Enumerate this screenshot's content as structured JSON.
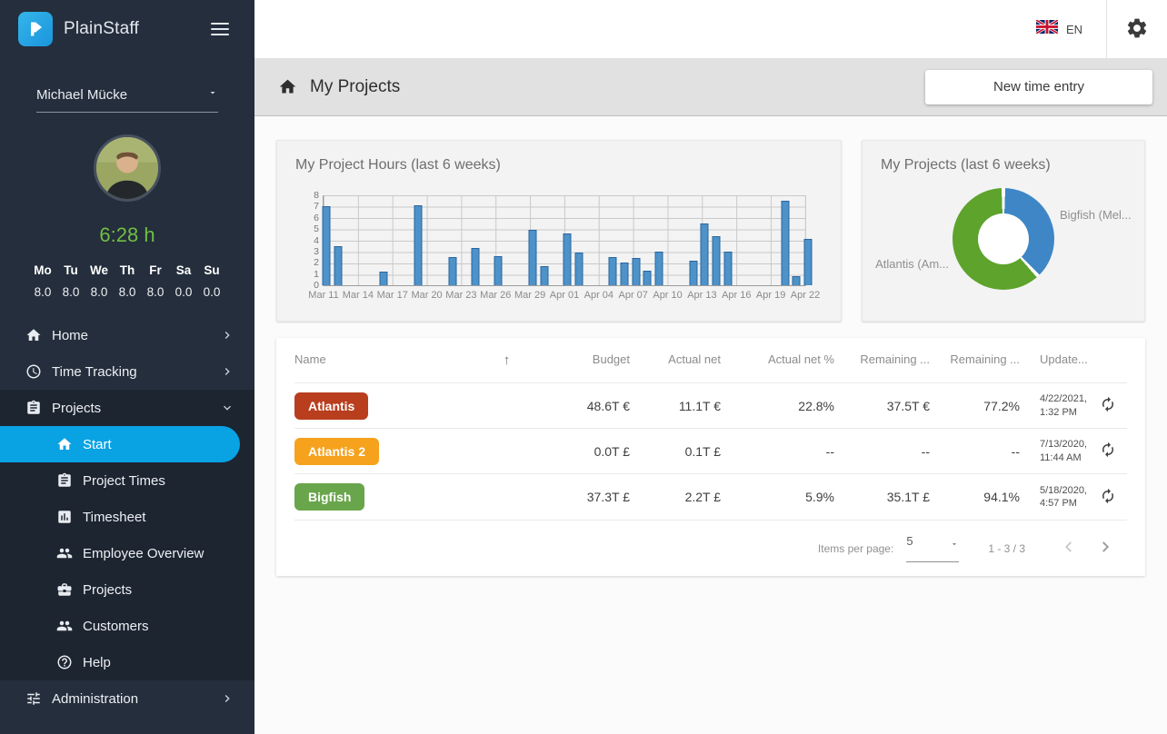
{
  "sidebar": {
    "brand": "PlainStaff",
    "user_name": "Michael Mücke",
    "time_today": "6:28 h",
    "week": {
      "days": [
        "Mo",
        "Tu",
        "We",
        "Th",
        "Fr",
        "Sa",
        "Su"
      ],
      "hours": [
        "8.0",
        "8.0",
        "8.0",
        "8.0",
        "8.0",
        "0.0",
        "0.0"
      ]
    },
    "menu": [
      {
        "id": "home",
        "label": "Home",
        "icon": "home-icon",
        "chevron": "right",
        "active": false
      },
      {
        "id": "time-tracking",
        "label": "Time Tracking",
        "icon": "clock-icon",
        "chevron": "right",
        "active": false
      },
      {
        "id": "projects",
        "label": "Projects",
        "icon": "clipboard-icon",
        "chevron": "down",
        "active": false,
        "expanded": true,
        "children": [
          {
            "id": "start",
            "label": "Start",
            "icon": "home-icon",
            "active": true
          },
          {
            "id": "project-times",
            "label": "Project Times",
            "icon": "clipboard-icon",
            "active": false
          },
          {
            "id": "timesheet",
            "label": "Timesheet",
            "icon": "timesheet-icon",
            "active": false
          },
          {
            "id": "employee-overview",
            "label": "Employee Overview",
            "icon": "people-icon",
            "active": false
          },
          {
            "id": "projects-admin",
            "label": "Projects",
            "icon": "briefcase-icon",
            "active": false
          },
          {
            "id": "customers",
            "label": "Customers",
            "icon": "people-icon",
            "active": false
          },
          {
            "id": "help",
            "label": "Help",
            "icon": "help-icon",
            "active": false
          }
        ]
      },
      {
        "id": "administration",
        "label": "Administration",
        "icon": "tune-icon",
        "chevron": "right",
        "active": false
      }
    ]
  },
  "topbar": {
    "language": "EN"
  },
  "header": {
    "title": "My Projects",
    "new_time_entry_label": "New time entry"
  },
  "chart_data": [
    {
      "type": "bar",
      "title": "My Project Hours (last 6 weeks)",
      "xlabel": "",
      "ylabel": "",
      "ylim": [
        0,
        8
      ],
      "y_ticks": [
        0,
        1,
        2,
        3,
        4,
        5,
        6,
        7,
        8
      ],
      "grid": true,
      "days_span": 42,
      "x_tick_interval_days": 3,
      "x_tick_labels": [
        "Mar 11",
        "Mar 14",
        "Mar 17",
        "Mar 20",
        "Mar 23",
        "Mar 26",
        "Mar 29",
        "Apr 01",
        "Apr 04",
        "Apr 07",
        "Apr 10",
        "Apr 13",
        "Apr 16",
        "Apr 19",
        "Apr 22"
      ],
      "bar_color": "#4d92c8",
      "bar_border_color": "#29659e",
      "points": [
        {
          "day": 0,
          "date": "Mar 11",
          "hours": 7.0
        },
        {
          "day": 1,
          "date": "Mar 12",
          "hours": 3.5
        },
        {
          "day": 5,
          "date": "Mar 16",
          "hours": 1.2
        },
        {
          "day": 8,
          "date": "Mar 19",
          "hours": 7.1
        },
        {
          "day": 11,
          "date": "Mar 22",
          "hours": 2.5
        },
        {
          "day": 13,
          "date": "Mar 24",
          "hours": 3.3
        },
        {
          "day": 15,
          "date": "Mar 26",
          "hours": 2.6
        },
        {
          "day": 18,
          "date": "Mar 29",
          "hours": 4.9
        },
        {
          "day": 19,
          "date": "Mar 30",
          "hours": 1.7
        },
        {
          "day": 21,
          "date": "Apr 01",
          "hours": 4.6
        },
        {
          "day": 22,
          "date": "Apr 02",
          "hours": 2.9
        },
        {
          "day": 25,
          "date": "Apr 05",
          "hours": 2.5
        },
        {
          "day": 26,
          "date": "Apr 06",
          "hours": 2.0
        },
        {
          "day": 27,
          "date": "Apr 07",
          "hours": 2.4
        },
        {
          "day": 28,
          "date": "Apr 08",
          "hours": 1.3
        },
        {
          "day": 29,
          "date": "Apr 09",
          "hours": 3.0
        },
        {
          "day": 32,
          "date": "Apr 12",
          "hours": 2.2
        },
        {
          "day": 33,
          "date": "Apr 13",
          "hours": 5.5
        },
        {
          "day": 34,
          "date": "Apr 14",
          "hours": 4.4
        },
        {
          "day": 35,
          "date": "Apr 15",
          "hours": 3.0
        },
        {
          "day": 40,
          "date": "Apr 20",
          "hours": 7.5
        },
        {
          "day": 41,
          "date": "Apr 21",
          "hours": 0.8
        },
        {
          "day": 42,
          "date": "Apr 22",
          "hours": 4.1
        }
      ]
    },
    {
      "type": "pie",
      "donut": true,
      "title": "My Projects (last 6 weeks)",
      "legend_position": "labels-outside",
      "slices": [
        {
          "label": "Bigfish (Mel...",
          "pct": 38,
          "color": "#3e86c5"
        },
        {
          "label": "Atlantis (Am...",
          "pct": 62,
          "color": "#5da32c"
        }
      ]
    }
  ],
  "table": {
    "columns": [
      "Name",
      "Budget",
      "Actual net",
      "Actual net %",
      "Remaining ...",
      "Remaining ...",
      "Update..."
    ],
    "sort_icon": "↑",
    "rows": [
      {
        "name": "Atlantis",
        "badge_color": "#b93e1e",
        "budget": "48.6T €",
        "actual_net": "11.1T €",
        "actual_net_pct": "22.8%",
        "remaining": "37.5T €",
        "remaining_pct": "77.2%",
        "updated_date": "4/22/2021,",
        "updated_time": "1:32 PM"
      },
      {
        "name": "Atlantis 2",
        "badge_color": "#f6a21d",
        "budget": "0.0T £",
        "actual_net": "0.1T £",
        "actual_net_pct": "--",
        "remaining": "--",
        "remaining_pct": "--",
        "updated_date": "7/13/2020,",
        "updated_time": "11:44 AM"
      },
      {
        "name": "Bigfish",
        "badge_color": "#69a54b",
        "budget": "37.3T £",
        "actual_net": "2.2T £",
        "actual_net_pct": "5.9%",
        "remaining": "35.1T £",
        "remaining_pct": "94.1%",
        "updated_date": "5/18/2020,",
        "updated_time": "4:57 PM"
      }
    ],
    "paginator": {
      "items_per_page_label": "Items per page:",
      "items_per_page": "5",
      "range_label": "1 - 3 / 3"
    }
  }
}
